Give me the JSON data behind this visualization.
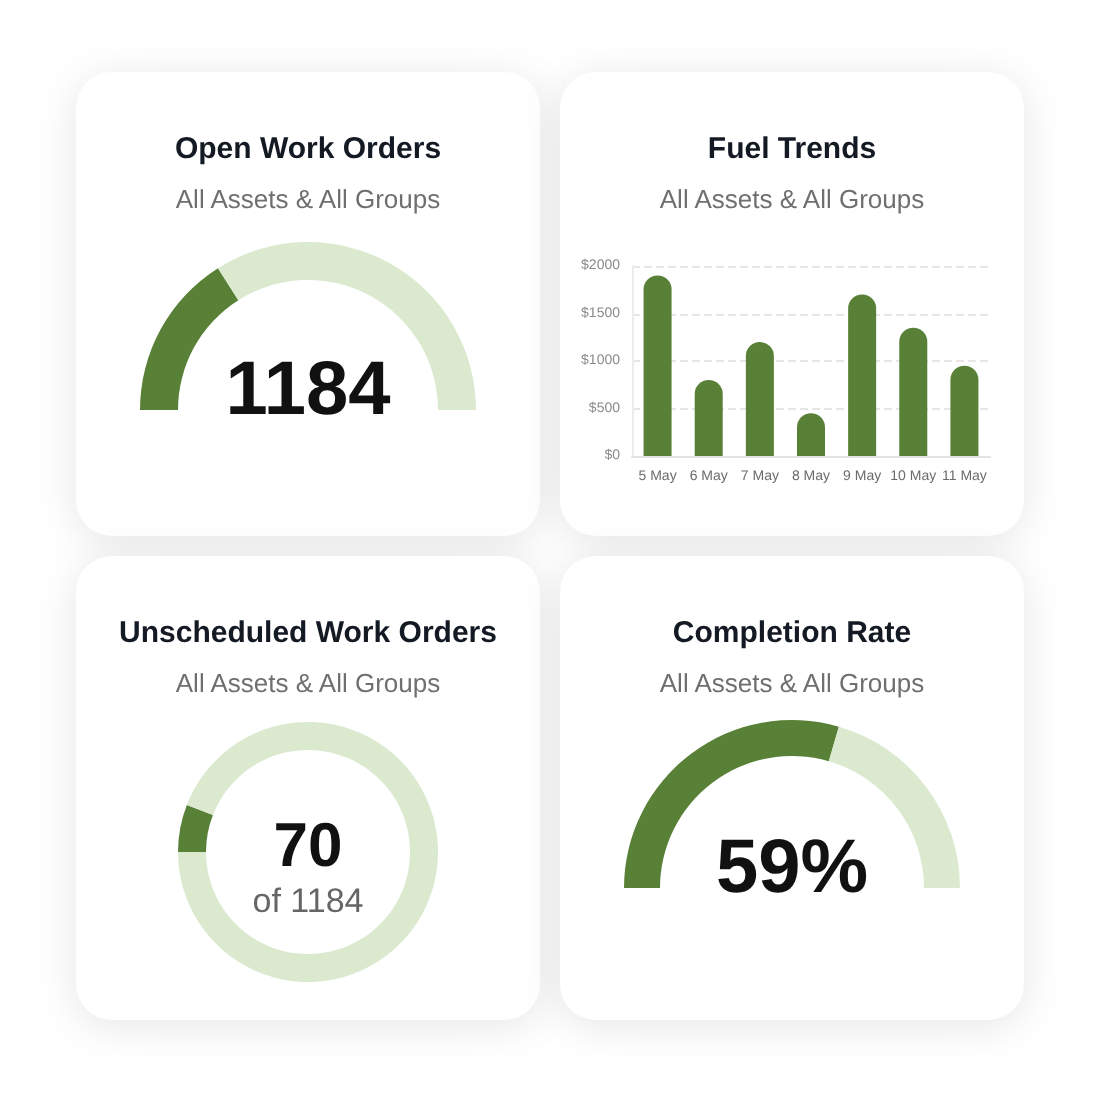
{
  "chart_data": [
    {
      "type": "donut",
      "title": "Open Work Orders",
      "subtitle": "All Assets & All Groups",
      "categories": [
        null,
        null
      ],
      "values": [
        32,
        68
      ],
      "colors": [
        "#588037",
        "#dbeacf"
      ],
      "annotations": [
        "1184"
      ]
    },
    {
      "type": "bar",
      "title": "Fuel Trends",
      "subtitle": "All Assets & All Groups",
      "categories": [
        "5 May",
        "6 May",
        "7 May",
        "8 May",
        "9 May",
        "10 May",
        "11 May"
      ],
      "values": [
        1900,
        800,
        1200,
        450,
        1700,
        1350,
        950
      ],
      "color": "#588037",
      "ylim": [
        0,
        2000
      ],
      "yticks": [
        {
          "value": 0,
          "label": "$0"
        },
        {
          "value": 500,
          "label": "$500"
        },
        {
          "value": 1000,
          "label": "$1000"
        },
        {
          "value": 1500,
          "label": "$1500"
        },
        {
          "value": 2000,
          "label": "$2000"
        }
      ],
      "grid": "y"
    },
    {
      "type": "donut",
      "title": "Unscheduled Work Orders",
      "subtitle": "All Assets & All Groups",
      "categories": [
        null,
        null
      ],
      "values": [
        5.9,
        94.1
      ],
      "colors": [
        "#588037",
        "#dbeacf"
      ],
      "annotations": [
        "70",
        "of 1184"
      ]
    },
    {
      "type": "donut",
      "title": "Completion Rate",
      "subtitle": "All Assets & All Groups",
      "categories": [
        null,
        null
      ],
      "values": [
        59,
        41
      ],
      "colors": [
        "#588037",
        "#dbeacf"
      ],
      "annotations": [
        "59%"
      ]
    }
  ]
}
